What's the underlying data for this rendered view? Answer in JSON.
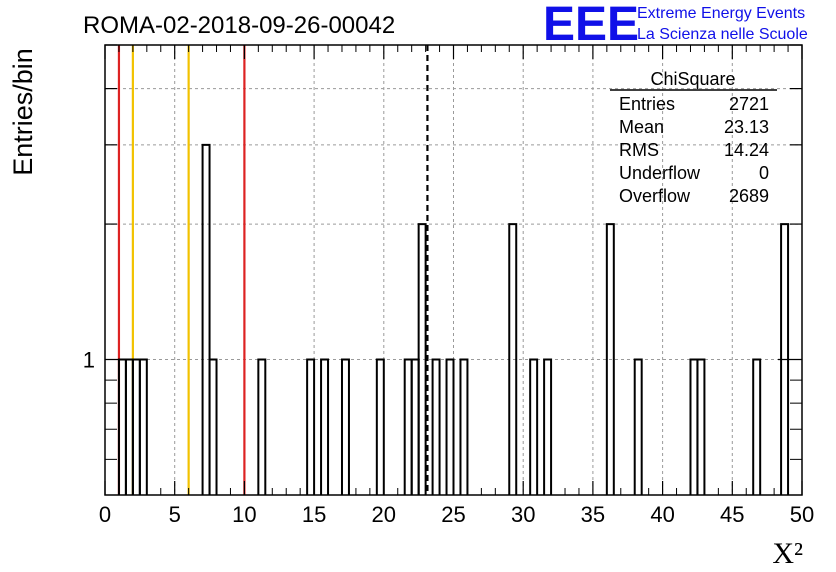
{
  "title": "ROMA-02-2018-09-26-00042",
  "branding": {
    "logo": "EEE",
    "line1": "Extreme Energy Events",
    "line2": "La Scienza nelle Scuole",
    "color": "#1010e8"
  },
  "stats": {
    "name": "ChiSquare",
    "rows": [
      {
        "label": "Entries",
        "value": "2721"
      },
      {
        "label": "Mean",
        "value": "23.13"
      },
      {
        "label": "RMS",
        "value": "14.24"
      },
      {
        "label": "Underflow",
        "value": "0"
      },
      {
        "label": "Overflow",
        "value": "2689"
      }
    ]
  },
  "chart_data": {
    "type": "bar",
    "histogram": true,
    "title": "ROMA-02-2018-09-26-00042",
    "xlabel": "X²",
    "ylabel": "Entries/bin",
    "xlim": [
      0,
      50
    ],
    "ylim": [
      0.5,
      5
    ],
    "log_y": true,
    "grid": true,
    "bin_width": 0.5,
    "xticks": [
      "0",
      "5",
      "10",
      "15",
      "20",
      "25",
      "30",
      "35",
      "40",
      "45",
      "50"
    ],
    "yticks": [
      "1"
    ],
    "bins": [
      {
        "x": 1.0,
        "value": 1
      },
      {
        "x": 1.5,
        "value": 1
      },
      {
        "x": 2.0,
        "value": 1
      },
      {
        "x": 2.5,
        "value": 1
      },
      {
        "x": 7.0,
        "value": 3
      },
      {
        "x": 7.5,
        "value": 1
      },
      {
        "x": 11.0,
        "value": 1
      },
      {
        "x": 14.5,
        "value": 1
      },
      {
        "x": 15.5,
        "value": 1
      },
      {
        "x": 17.0,
        "value": 1
      },
      {
        "x": 19.5,
        "value": 1
      },
      {
        "x": 21.5,
        "value": 1
      },
      {
        "x": 22.0,
        "value": 1
      },
      {
        "x": 22.5,
        "value": 2
      },
      {
        "x": 23.5,
        "value": 1
      },
      {
        "x": 24.5,
        "value": 1
      },
      {
        "x": 25.5,
        "value": 1
      },
      {
        "x": 29.0,
        "value": 2
      },
      {
        "x": 30.5,
        "value": 1
      },
      {
        "x": 31.5,
        "value": 1
      },
      {
        "x": 36.0,
        "value": 2
      },
      {
        "x": 38.0,
        "value": 1
      },
      {
        "x": 42.0,
        "value": 1
      },
      {
        "x": 42.5,
        "value": 1
      },
      {
        "x": 46.5,
        "value": 1
      },
      {
        "x": 48.5,
        "value": 2
      }
    ],
    "reference_lines": [
      {
        "x": 1,
        "color": "#dd2222",
        "style": "solid"
      },
      {
        "x": 2,
        "color": "#f2c200",
        "style": "solid"
      },
      {
        "x": 6,
        "color": "#f2c200",
        "style": "solid"
      },
      {
        "x": 10,
        "color": "#dd2222",
        "style": "solid"
      },
      {
        "x": 23.13,
        "color": "#000000",
        "style": "dashed"
      }
    ]
  }
}
